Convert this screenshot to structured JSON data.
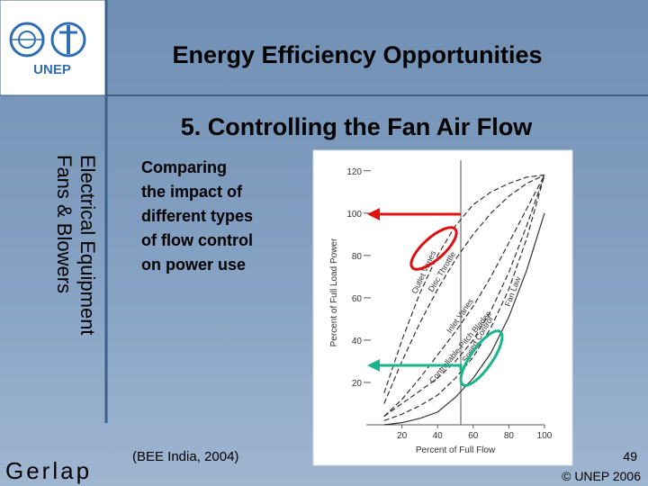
{
  "header": {
    "title": "Energy Efficiency Opportunities",
    "logo_text": "UNEP"
  },
  "sidebar": {
    "lines": [
      "Electrical Equipment",
      "Fans & Blowers"
    ]
  },
  "subtitle": "5. Controlling the Fan Air Flow",
  "body": {
    "lines": [
      "Comparing",
      "the impact of",
      "different types",
      "of flow control",
      "on power use"
    ]
  },
  "source": "(BEE India, 2004)",
  "page_number": 49,
  "copyright": "© UNEP 2006",
  "footer_logo": "Gerlap",
  "chart_data": {
    "type": "line",
    "x_label": "Percent of Full Flow",
    "y_label": "Percent of Full Load Power",
    "x": [
      10,
      20,
      30,
      40,
      50,
      60,
      70,
      80,
      90,
      100
    ],
    "series": [
      {
        "name": "Outlet Vanes",
        "color": "#333333",
        "values": [
          15,
          40,
          62,
          80,
          94,
          104,
          110,
          114,
          117,
          118
        ]
      },
      {
        "name": "Disc Throttle",
        "color": "#333333",
        "values": [
          10,
          30,
          48,
          64,
          78,
          90,
          100,
          108,
          114,
          118
        ]
      },
      {
        "name": "Inlet Vanes",
        "color": "#333333",
        "values": [
          4,
          12,
          22,
          33,
          44,
          56,
          70,
          86,
          102,
          118
        ]
      },
      {
        "name": "Controllable-Pitch Blades",
        "color": "#333333",
        "values": [
          4,
          10,
          16,
          22,
          30,
          40,
          54,
          72,
          94,
          118
        ]
      },
      {
        "name": "Speed Control",
        "color": "#333333",
        "values": [
          2,
          5,
          9,
          14,
          22,
          32,
          46,
          64,
          88,
          118
        ]
      },
      {
        "name": "Fan Law",
        "color": "#333333",
        "values": [
          0,
          1,
          3,
          6,
          13,
          22,
          34,
          51,
          73,
          100
        ]
      }
    ],
    "xlim": [
      0,
      100
    ],
    "xticks": [
      20,
      40,
      60,
      80,
      100
    ],
    "ylim": [
      0,
      125
    ],
    "yticks": [
      20,
      40,
      60,
      80,
      100,
      120
    ]
  }
}
